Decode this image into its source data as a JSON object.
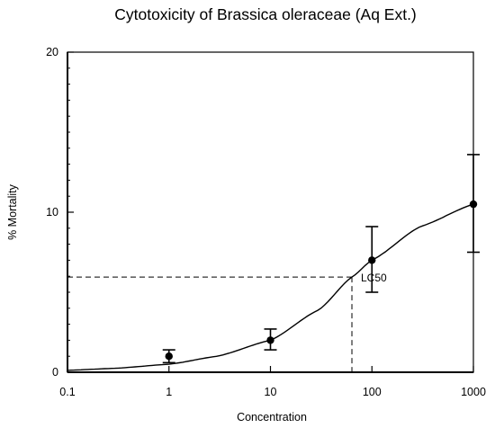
{
  "chart_data": {
    "type": "scatter",
    "title": "Cytotoxicity of Brassica oleraceae (Aq Ext.)",
    "xlabel": "Concentration",
    "ylabel": "% Mortality",
    "xscale": "log",
    "xlim": [
      0.1,
      1000
    ],
    "ylim": [
      0,
      20
    ],
    "xticks": [
      "0.1",
      "1",
      "10",
      "100",
      "1000"
    ],
    "yticks": [
      "0",
      "10",
      "20"
    ],
    "points": [
      {
        "x": 1,
        "y": 1.0,
        "err_low": 0.6,
        "err_high": 1.4
      },
      {
        "x": 10,
        "y": 2.0,
        "err_low": 1.4,
        "err_high": 2.7
      },
      {
        "x": 100,
        "y": 7.0,
        "err_low": 5.0,
        "err_high": 9.1
      },
      {
        "x": 1000,
        "y": 10.5,
        "err_low": 7.5,
        "err_high": 13.6
      }
    ],
    "fit_curve": {
      "type": "sigmoid",
      "x": [
        0.1,
        0.3,
        1,
        3,
        10,
        30,
        63.5,
        100,
        300,
        1000
      ],
      "y": [
        0.12,
        0.25,
        0.5,
        1.0,
        2.0,
        3.9,
        5.95,
        7.0,
        9.1,
        10.5
      ]
    },
    "annotations": [
      {
        "text": "LC50",
        "x": 63.5,
        "y": 5.95,
        "style": "dashed guide lines to axes"
      }
    ],
    "grid": false,
    "legend": "none"
  }
}
